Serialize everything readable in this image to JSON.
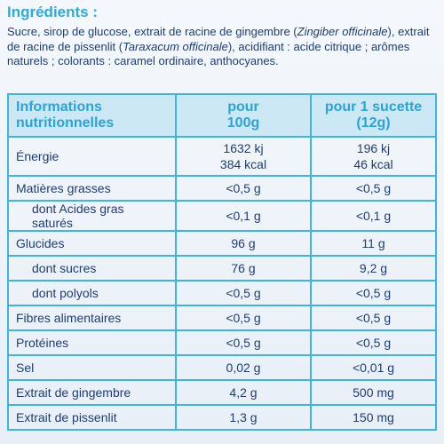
{
  "ingredients": {
    "title": "Ingrédients :",
    "parts": [
      "Sucre, sirop de glucose, extrait de racine de gingembre (",
      "Zingiber officinale",
      "), extrait de racine de pissenlit (",
      "Taraxacum officinale",
      "), acidifiant : acide citrique ; arômes naturels ; colorants : caramel ordinaire, anthocyanes."
    ]
  },
  "table": {
    "header": [
      [
        "Informations",
        "nutritionnelles"
      ],
      [
        "pour",
        "100g"
      ],
      [
        "pour 1 sucette",
        "(12g)"
      ]
    ],
    "rows": [
      [
        "Énergie",
        [
          "1632 kj",
          "384 kcal"
        ],
        [
          "196 kj",
          "46 kcal"
        ]
      ],
      [
        "Matières grasses",
        "<0,5 g",
        "<0,5 g"
      ],
      [
        "dont Acides gras saturés",
        "<0,1 g",
        "<0,1 g"
      ],
      [
        "Glucides",
        "96 g",
        "11 g"
      ],
      [
        "dont sucres",
        "76 g",
        "9,2 g"
      ],
      [
        "dont polyols",
        "<0,5 g",
        "<0,5 g"
      ],
      [
        "Fibres alimentaires",
        "<0,5 g",
        "<0,5 g"
      ],
      [
        "Protéines",
        "<0,5 g",
        "<0,5 g"
      ],
      [
        "Sel",
        "0,02 g",
        "<0,01 g"
      ],
      [
        "Extrait de gingembre",
        "4,2 g",
        "500 mg"
      ],
      [
        "Extrait de pissenlit",
        "1,3 g",
        "150 mg"
      ]
    ]
  }
}
